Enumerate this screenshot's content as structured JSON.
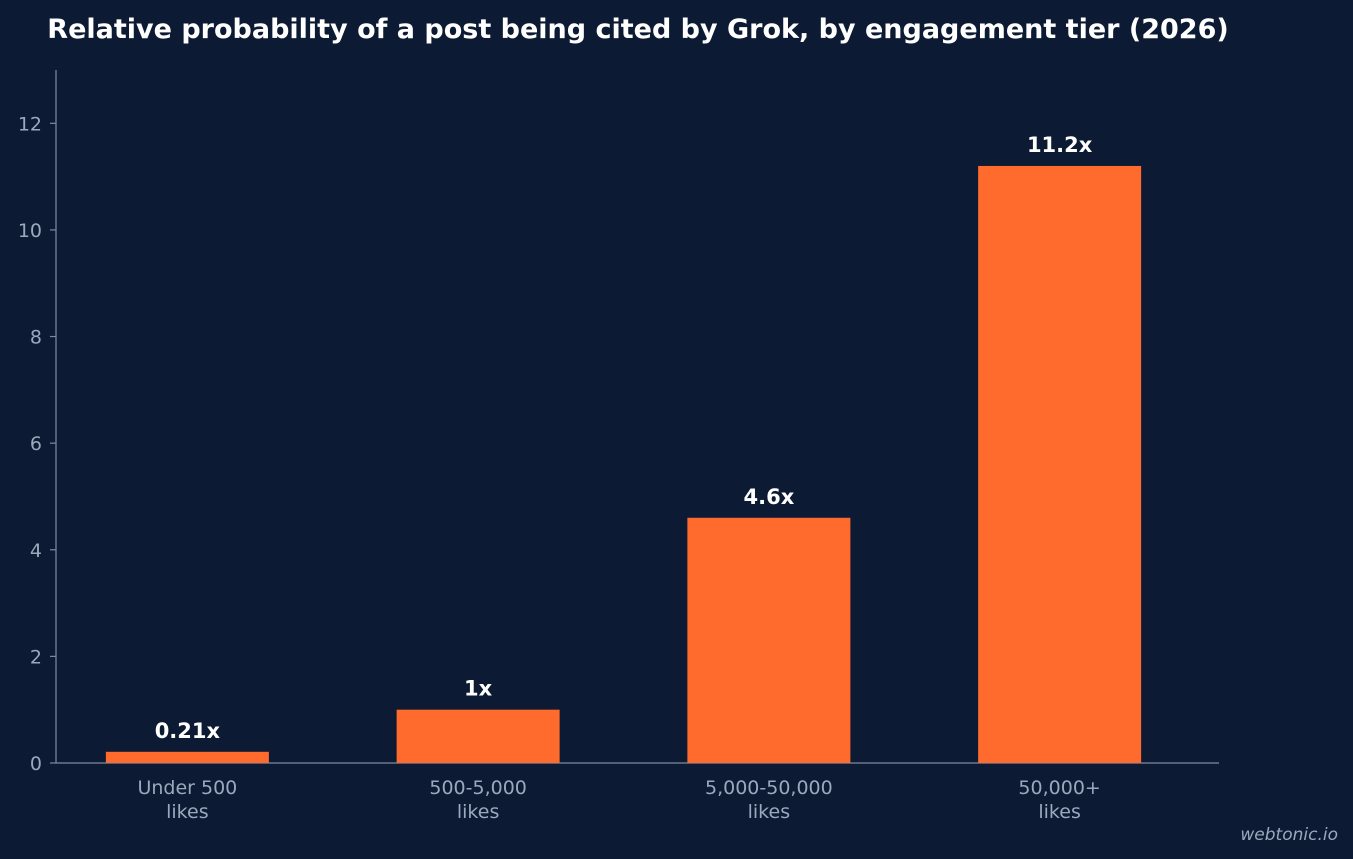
{
  "chart_data": {
    "type": "bar",
    "title": "Relative probability of a post being cited by Grok, by engagement tier (2026)",
    "categories": [
      [
        "Under 500",
        "likes"
      ],
      [
        "500-5,000",
        "likes"
      ],
      [
        "5,000-50,000",
        "likes"
      ],
      [
        "50,000+",
        "likes"
      ]
    ],
    "values": [
      0.21,
      1,
      4.6,
      11.2
    ],
    "data_labels": [
      "0.21x",
      "1x",
      "4.6x",
      "11.2x"
    ],
    "ylim": [
      0,
      13
    ],
    "yticks": [
      0,
      2,
      4,
      6,
      8,
      10,
      12
    ],
    "grid": false,
    "colors": {
      "background": "#0c1b33",
      "bar": "#ff6b2c",
      "axis": "#7d8aa3",
      "tick_text": "#9ba8bd",
      "title_text": "#ffffff"
    }
  },
  "watermark": "webtonic.io"
}
